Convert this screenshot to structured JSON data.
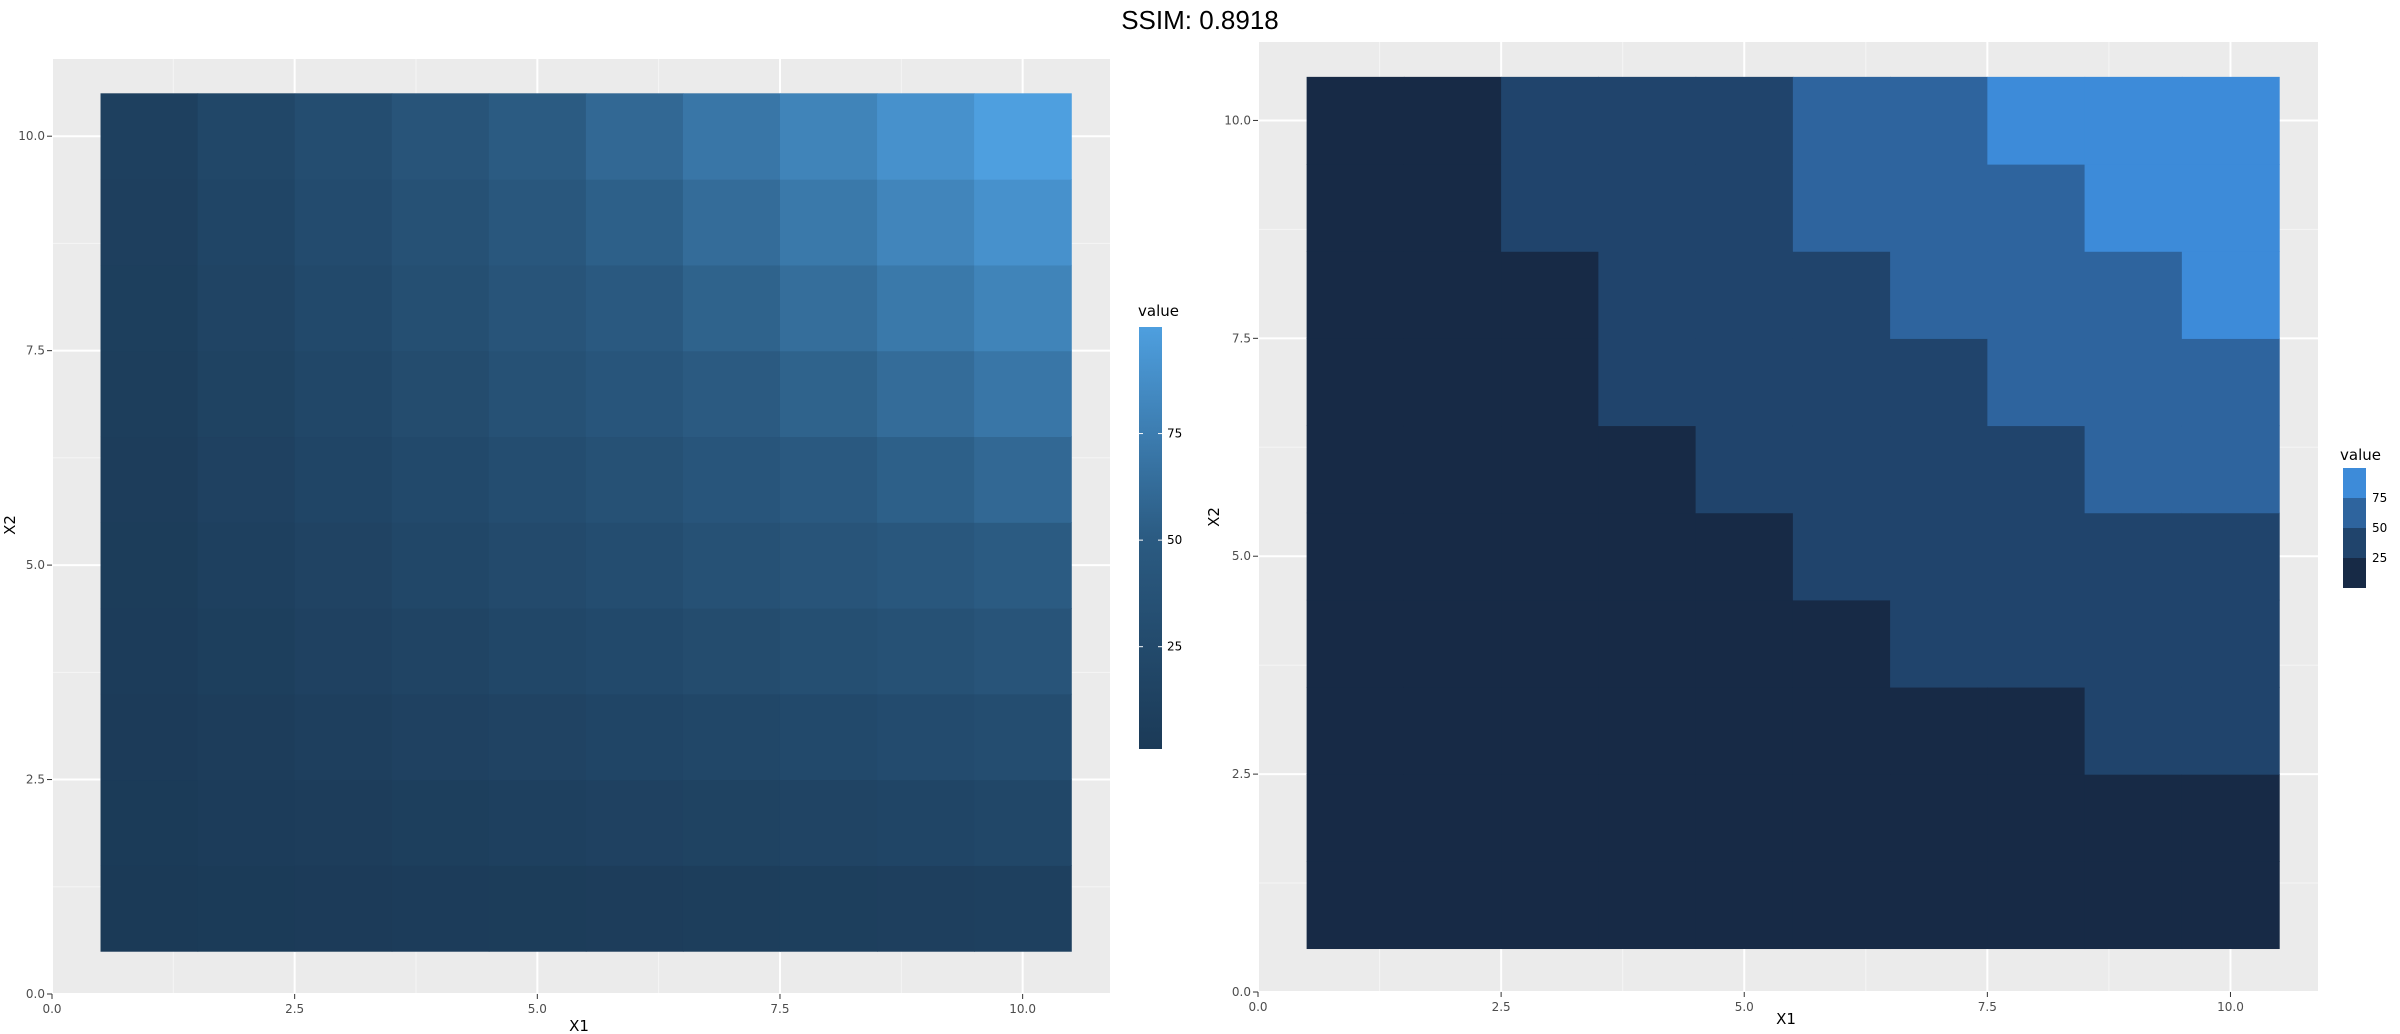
{
  "header": {
    "title": "SSIM: 0.8918"
  },
  "chart_data": [
    {
      "type": "heatmap",
      "xlabel": "X1",
      "ylabel": "X2",
      "xlim": [
        0,
        10.9
      ],
      "ylim": [
        0,
        10.9
      ],
      "x_ticks": [
        0,
        2.5,
        5,
        7.5,
        10
      ],
      "y_ticks": [
        0,
        2.5,
        5,
        7.5,
        10
      ],
      "x_tick_labels": [
        "0.0",
        "2.5",
        "5.0",
        "7.5",
        "10.0"
      ],
      "y_tick_labels": [
        "0.0",
        "2.5",
        "5.0",
        "7.5",
        "10.0"
      ],
      "x": [
        1,
        2,
        3,
        4,
        5,
        6,
        7,
        8,
        9,
        10
      ],
      "y": [
        1,
        2,
        3,
        4,
        5,
        6,
        7,
        8,
        9,
        10
      ],
      "value_formula": "value = X1 * X2",
      "fill_scale": "continuous gradient",
      "fill_colors": [
        "#1b3a57",
        "#2b5b82",
        "#4e9fdf"
      ],
      "legend": {
        "title": "value",
        "position": "right",
        "labels": [
          "25",
          "50",
          "75"
        ],
        "breaks": [
          25,
          50,
          75
        ]
      },
      "grid": true
    },
    {
      "type": "heatmap",
      "xlabel": "X1",
      "ylabel": "X2",
      "xlim": [
        0,
        10.9
      ],
      "ylim": [
        0,
        10.9
      ],
      "x_ticks": [
        0,
        2.5,
        5,
        7.5,
        10
      ],
      "y_ticks": [
        0,
        2.5,
        5,
        7.5,
        10
      ],
      "x_tick_labels": [
        "0.0",
        "2.5",
        "5.0",
        "7.5",
        "10.0"
      ],
      "y_tick_labels": [
        "0.0",
        "2.5",
        "5.0",
        "7.5",
        "10.0"
      ],
      "x": [
        1,
        2,
        3,
        4,
        5,
        6,
        7,
        8,
        9,
        10
      ],
      "y": [
        1,
        2,
        3,
        4,
        5,
        6,
        7,
        8,
        9,
        10
      ],
      "value_formula": "value = X1 * X2",
      "fill_scale": "binned",
      "bin_breaks": [
        25,
        50,
        75
      ],
      "fill_colors": [
        "#172a46",
        "#20446c",
        "#2e649e",
        "#3d8bd9"
      ],
      "legend": {
        "title": "value",
        "position": "right",
        "labels": [
          "75",
          "50",
          "25"
        ],
        "breaks": [
          75,
          50,
          25
        ]
      },
      "grid": true
    }
  ]
}
